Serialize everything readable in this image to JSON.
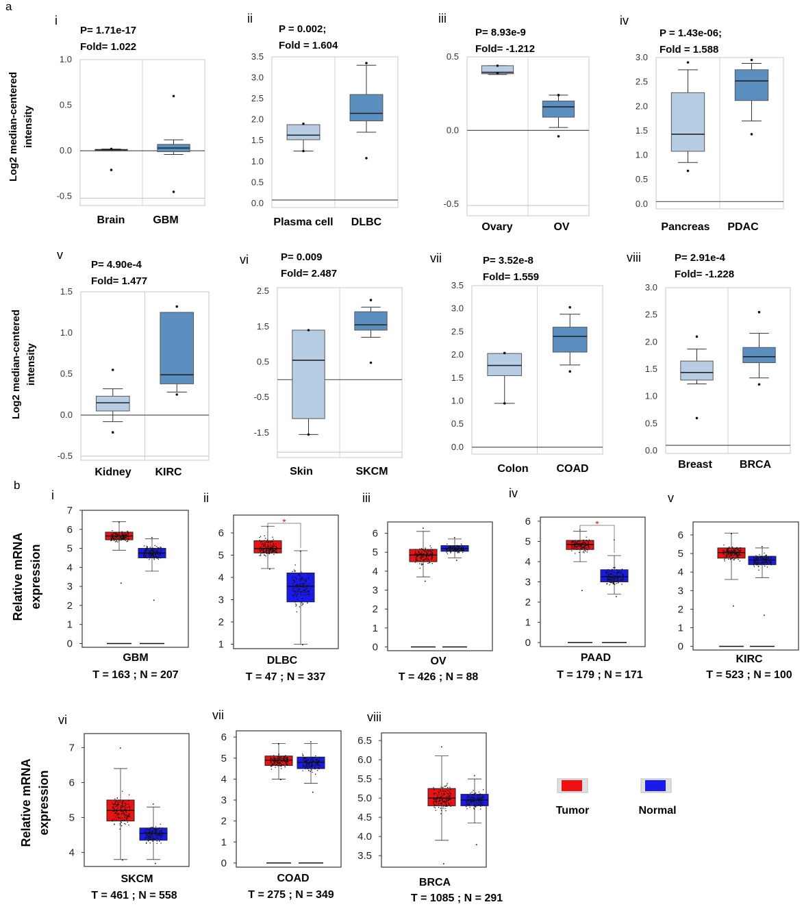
{
  "panel_letters": [
    "a",
    "b"
  ],
  "y_label_a": [
    "Log2 median-centered",
    "intensity"
  ],
  "y_label_b": [
    "Relative mRNA",
    "expression"
  ],
  "legend": {
    "tumor_label": "Tumor",
    "normal_label": "Normal",
    "tumor_color": "#ee1111",
    "normal_color": "#1a1aee"
  },
  "colors": {
    "oncomine_normal": "#b7cde3",
    "oncomine_cancer": "#5b8fbf",
    "axis": "#707070"
  },
  "chart_data": [
    {
      "id": "a-i",
      "type": "box",
      "roman": "i",
      "stats": [
        "P= 1.71e-17",
        "Fold= 1.022"
      ],
      "ylim": [
        -0.6,
        1.0
      ],
      "ticks": [
        1.0,
        0.5,
        0.0,
        -0.5
      ],
      "tick_labels": [
        "1.0",
        "0.5",
        "0.0",
        "-0.5"
      ],
      "baselines": [
        0.0,
        -0.52
      ],
      "categories": [
        "Brain",
        "GBM"
      ],
      "boxes": [
        {
          "min": 0.0,
          "q1": 0.0,
          "median": 0.01,
          "q3": 0.015,
          "max": 0.02,
          "outliers": [
            0.02,
            -0.21
          ]
        },
        {
          "min": -0.04,
          "q1": -0.01,
          "median": 0.03,
          "q3": 0.07,
          "max": 0.12,
          "outliers": [
            0.6,
            -0.45
          ]
        }
      ]
    },
    {
      "id": "a-ii",
      "type": "box",
      "roman": "ii",
      "stats": [
        "P = 0.002;",
        "Fold = 1.604"
      ],
      "ylim": [
        -0.1,
        3.5
      ],
      "ticks": [
        3.5,
        3.0,
        2.5,
        2.0,
        1.5,
        1.0,
        0.5,
        0.0
      ],
      "tick_labels": [
        "3.5",
        "3.0",
        "2.5",
        "2.0",
        "1.5",
        "1.0",
        "0.5",
        "0.0"
      ],
      "baselines": [
        0.08
      ],
      "categories": [
        "Plasma cell",
        "DLBC"
      ],
      "boxes": [
        {
          "min": 1.25,
          "q1": 1.52,
          "median": 1.63,
          "q3": 1.88,
          "max": 1.88,
          "outliers": [
            1.9,
            1.25
          ]
        },
        {
          "min": 1.7,
          "q1": 1.97,
          "median": 2.15,
          "q3": 2.6,
          "max": 3.3,
          "outliers": [
            3.35,
            1.08
          ]
        }
      ]
    },
    {
      "id": "a-iii",
      "type": "box",
      "roman": "iii",
      "stats": [
        "P= 8.93e-9",
        "Fold= -1.212"
      ],
      "ylim": [
        -0.58,
        0.5
      ],
      "ticks": [
        0.5,
        0.0,
        -0.5
      ],
      "tick_labels": [
        "0.5",
        "0.0",
        "-0.5"
      ],
      "baselines": [
        0.0,
        -0.51
      ],
      "categories": [
        "Ovary",
        "OV"
      ],
      "boxes": [
        {
          "min": 0.38,
          "q1": 0.385,
          "median": 0.395,
          "q3": 0.44,
          "max": 0.44,
          "outliers": [
            0.44,
            0.39
          ]
        },
        {
          "min": 0.02,
          "q1": 0.09,
          "median": 0.16,
          "q3": 0.2,
          "max": 0.24,
          "outliers": [
            0.24,
            -0.04
          ]
        }
      ]
    },
    {
      "id": "a-iv",
      "type": "box",
      "roman": "iv",
      "stats": [
        "P = 1.43e-06;",
        "Fold = 1.588"
      ],
      "ylim": [
        -0.1,
        3.0
      ],
      "ticks": [
        3.0,
        2.5,
        2.0,
        1.5,
        1.0,
        0.5,
        0.0
      ],
      "tick_labels": [
        "3.0",
        "2.5",
        "2.0",
        "1.5",
        "1.0",
        "0.5",
        "0.0"
      ],
      "baselines": [
        0.05
      ],
      "categories": [
        "Pancreas",
        "PDAC"
      ],
      "boxes": [
        {
          "min": 0.85,
          "q1": 1.08,
          "median": 1.43,
          "q3": 2.28,
          "max": 2.75,
          "outliers": [
            2.9,
            0.68
          ]
        },
        {
          "min": 1.7,
          "q1": 2.12,
          "median": 2.52,
          "q3": 2.75,
          "max": 2.88,
          "outliers": [
            2.95,
            1.43
          ]
        }
      ]
    },
    {
      "id": "a-v",
      "type": "box",
      "roman": "v",
      "stats": [
        "P= 4.90e-4",
        "Fold= 1.477"
      ],
      "ylim": [
        -0.55,
        1.5
      ],
      "ticks": [
        1.5,
        1.0,
        0.5,
        0.0,
        -0.5
      ],
      "tick_labels": [
        "1.5",
        "1.0",
        "0.5",
        "0.0",
        "-0.5"
      ],
      "baselines": [
        0.0,
        -0.5
      ],
      "categories": [
        "Kidney",
        "KIRC"
      ],
      "boxes": [
        {
          "min": -0.08,
          "q1": 0.05,
          "median": 0.15,
          "q3": 0.23,
          "max": 0.32,
          "outliers": [
            0.55,
            -0.21
          ]
        },
        {
          "min": 0.28,
          "q1": 0.38,
          "median": 0.49,
          "q3": 1.25,
          "max": 1.25,
          "outliers": [
            1.32,
            0.25
          ]
        }
      ]
    },
    {
      "id": "a-vi",
      "type": "box",
      "roman": "vi",
      "stats": [
        "P= 0.009",
        "Fold= 2.487"
      ],
      "ylim": [
        -2.2,
        2.6
      ],
      "ticks": [
        2.5,
        1.5,
        0.5,
        -0.5,
        -1.5
      ],
      "tick_labels": [
        "2.5",
        "1.5",
        "0.5",
        "-0.5",
        "-1.5"
      ],
      "baselines": [
        0.0,
        -2.05
      ],
      "categories": [
        "Skin",
        "SKCM"
      ],
      "boxes": [
        {
          "min": -1.55,
          "q1": -1.1,
          "median": 0.55,
          "q3": 1.4,
          "max": 1.4,
          "outliers": [
            1.4,
            -1.55
          ]
        },
        {
          "min": 1.2,
          "q1": 1.4,
          "median": 1.55,
          "q3": 1.92,
          "max": 2.05,
          "outliers": [
            2.25,
            0.48
          ]
        }
      ]
    },
    {
      "id": "a-vii",
      "type": "box",
      "roman": "vii",
      "stats": [
        "P= 3.52e-8",
        "Fold= 1.559"
      ],
      "ylim": [
        -0.15,
        3.5
      ],
      "ticks": [
        3.5,
        3.0,
        2.5,
        2.0,
        1.5,
        1.0,
        0.5,
        0.0
      ],
      "tick_labels": [
        "3.5",
        "3.0",
        "2.5",
        "2.0",
        "1.5",
        "1.0",
        "0.5",
        "0.0"
      ],
      "baselines": [
        0.0
      ],
      "categories": [
        "Colon",
        "COAD"
      ],
      "boxes": [
        {
          "min": 0.95,
          "q1": 1.55,
          "median": 1.77,
          "q3": 2.03,
          "max": 2.03,
          "outliers": [
            2.04,
            0.95
          ]
        },
        {
          "min": 1.78,
          "q1": 2.06,
          "median": 2.4,
          "q3": 2.6,
          "max": 2.88,
          "outliers": [
            3.03,
            1.64
          ]
        }
      ]
    },
    {
      "id": "a-viii",
      "type": "box",
      "roman": "viii",
      "stats": [
        "P= 2.91e-4",
        "Fold= -1.228"
      ],
      "ylim": [
        -0.05,
        3.0
      ],
      "ticks": [
        3.0,
        2.5,
        2.0,
        1.5,
        1.0,
        0.5,
        0.0
      ],
      "tick_labels": [
        "3.0",
        "2.5",
        "2.0",
        "1.5",
        "1.0",
        "0.5",
        "0.0"
      ],
      "baselines": [
        0.1
      ],
      "categories": [
        "Breast",
        "BRCA"
      ],
      "boxes": [
        {
          "min": 1.23,
          "q1": 1.3,
          "median": 1.44,
          "q3": 1.65,
          "max": 1.87,
          "outliers": [
            2.1,
            0.6
          ]
        },
        {
          "min": 1.34,
          "q1": 1.62,
          "median": 1.73,
          "q3": 1.9,
          "max": 2.16,
          "outliers": [
            2.55,
            1.22
          ]
        }
      ]
    },
    {
      "id": "b-i",
      "type": "box",
      "roman": "i",
      "ylim": [
        -0.2,
        7.0
      ],
      "ticks": [
        7,
        6,
        5,
        4,
        3,
        2,
        1,
        0
      ],
      "tick_labels": [
        "7",
        "6",
        "5",
        "4",
        "3",
        "2",
        "1",
        "0"
      ],
      "category": "GBM",
      "counts": "T = 163 ; N = 207",
      "significant": false,
      "boxes": [
        {
          "name": "Tumor",
          "min": 4.9,
          "q1": 5.45,
          "median": 5.65,
          "q3": 5.85,
          "max": 6.4,
          "spread_low": 3.2,
          "spread_high": 6.4
        },
        {
          "name": "Normal",
          "min": 3.8,
          "q1": 4.5,
          "median": 4.75,
          "q3": 5.0,
          "max": 5.5,
          "spread_low": 2.3,
          "spread_high": 5.6
        }
      ]
    },
    {
      "id": "b-ii",
      "type": "box",
      "roman": "ii",
      "ylim": [
        0.8,
        6.8
      ],
      "ticks": [
        6,
        5,
        4,
        3,
        2,
        1
      ],
      "tick_labels": [
        "6",
        "5",
        "4",
        "3",
        "2",
        "1"
      ],
      "category": "DLBC",
      "counts": "T = 47 ; N = 337",
      "significant": true,
      "boxes": [
        {
          "name": "Tumor",
          "min": 4.4,
          "q1": 5.1,
          "median": 5.3,
          "q3": 5.65,
          "max": 6.3,
          "spread_low": 4.4,
          "spread_high": 6.3
        },
        {
          "name": "Normal",
          "min": 1.0,
          "q1": 2.9,
          "median": 3.6,
          "q3": 4.2,
          "max": 5.2,
          "spread_low": 1.0,
          "spread_high": 5.2
        }
      ]
    },
    {
      "id": "b-iii",
      "type": "box",
      "roman": "iii",
      "ylim": [
        -0.2,
        6.6
      ],
      "ticks": [
        6,
        5,
        4,
        3,
        2,
        1,
        0
      ],
      "tick_labels": [
        "6",
        "5",
        "4",
        "3",
        "2",
        "1",
        "0"
      ],
      "category": "OV",
      "counts": "T = 426 ; N = 88",
      "significant": false,
      "boxes": [
        {
          "name": "Tumor",
          "min": 3.7,
          "q1": 4.5,
          "median": 4.85,
          "q3": 5.15,
          "max": 6.1,
          "spread_low": 3.5,
          "spread_high": 6.3
        },
        {
          "name": "Normal",
          "min": 4.7,
          "q1": 5.05,
          "median": 5.2,
          "q3": 5.35,
          "max": 5.7,
          "spread_low": 4.6,
          "spread_high": 5.8
        }
      ]
    },
    {
      "id": "b-iv",
      "type": "box",
      "roman": "iv",
      "ylim": [
        -0.2,
        6.2
      ],
      "ticks": [
        6,
        5,
        4,
        3,
        2,
        1,
        0
      ],
      "tick_labels": [
        "6",
        "5",
        "4",
        "3",
        "2",
        "1",
        "0"
      ],
      "category": "PAAD",
      "counts": "T = 179 ; N = 171",
      "significant": true,
      "boxes": [
        {
          "name": "Tumor",
          "min": 4.0,
          "q1": 4.6,
          "median": 4.85,
          "q3": 5.05,
          "max": 5.5,
          "spread_low": 2.6,
          "spread_high": 5.6
        },
        {
          "name": "Normal",
          "min": 2.4,
          "q1": 3.0,
          "median": 3.25,
          "q3": 3.6,
          "max": 4.3,
          "spread_low": 2.3,
          "spread_high": 5.1
        }
      ]
    },
    {
      "id": "b-v",
      "type": "box",
      "roman": "v",
      "ylim": [
        -0.2,
        6.7
      ],
      "ticks": [
        6,
        5,
        4,
        3,
        2,
        1,
        0
      ],
      "tick_labels": [
        "6",
        "5",
        "4",
        "3",
        "2",
        "1",
        "0"
      ],
      "category": "KIRC",
      "counts": "T = 523 ; N = 100",
      "significant": false,
      "boxes": [
        {
          "name": "Tumor",
          "min": 3.6,
          "q1": 4.75,
          "median": 5.05,
          "q3": 5.3,
          "max": 6.1,
          "spread_low": 2.2,
          "spread_high": 6.1
        },
        {
          "name": "Normal",
          "min": 3.7,
          "q1": 4.4,
          "median": 4.65,
          "q3": 4.85,
          "max": 5.3,
          "spread_low": 1.7,
          "spread_high": 5.4
        }
      ]
    },
    {
      "id": "b-vi",
      "type": "box",
      "roman": "vi",
      "ylim": [
        3.6,
        7.4
      ],
      "ticks": [
        7,
        6,
        5,
        4
      ],
      "tick_labels": [
        "7",
        "6",
        "5",
        "4"
      ],
      "category": "SKCM",
      "counts": "T = 461 ; N = 558",
      "significant": false,
      "boxes": [
        {
          "name": "Tumor",
          "min": 3.8,
          "q1": 4.9,
          "median": 5.2,
          "q3": 5.5,
          "max": 6.4,
          "spread_low": 3.8,
          "spread_high": 7.0
        },
        {
          "name": "Normal",
          "min": 3.8,
          "q1": 4.35,
          "median": 4.55,
          "q3": 4.7,
          "max": 5.3,
          "spread_low": 3.7,
          "spread_high": 5.4
        }
      ]
    },
    {
      "id": "b-vii",
      "type": "box",
      "roman": "vii",
      "ylim": [
        -0.2,
        6.3
      ],
      "ticks": [
        6,
        5,
        4,
        3,
        2,
        1,
        0
      ],
      "tick_labels": [
        "6",
        "5",
        "4",
        "3",
        "2",
        "1",
        "0"
      ],
      "category": "COAD",
      "counts": "T = 275 ; N = 349",
      "significant": false,
      "boxes": [
        {
          "name": "Tumor",
          "min": 4.0,
          "q1": 4.65,
          "median": 4.9,
          "q3": 5.1,
          "max": 5.7,
          "spread_low": 4.0,
          "spread_high": 5.7
        },
        {
          "name": "Normal",
          "min": 3.8,
          "q1": 4.5,
          "median": 4.8,
          "q3": 5.05,
          "max": 5.7,
          "spread_low": 3.4,
          "spread_high": 5.8
        }
      ]
    },
    {
      "id": "b-viii",
      "type": "box",
      "roman": "viii",
      "ylim": [
        3.2,
        6.7
      ],
      "ticks": [
        6.5,
        6.0,
        5.5,
        5.0,
        4.5,
        4.0,
        3.5
      ],
      "tick_labels": [
        "6.5",
        "6.0",
        "5.5",
        "5.0",
        "4.5",
        "4.0",
        "3.5"
      ],
      "category": "BRCA",
      "counts": "T = 1085 ; N = 291",
      "significant": false,
      "boxes": [
        {
          "name": "Tumor",
          "min": 3.9,
          "q1": 4.8,
          "median": 5.0,
          "q3": 5.25,
          "max": 6.1,
          "spread_low": 3.3,
          "spread_high": 6.35
        },
        {
          "name": "Normal",
          "min": 4.35,
          "q1": 4.8,
          "median": 4.95,
          "q3": 5.1,
          "max": 5.5,
          "spread_low": 3.8,
          "spread_high": 5.6
        }
      ]
    }
  ]
}
